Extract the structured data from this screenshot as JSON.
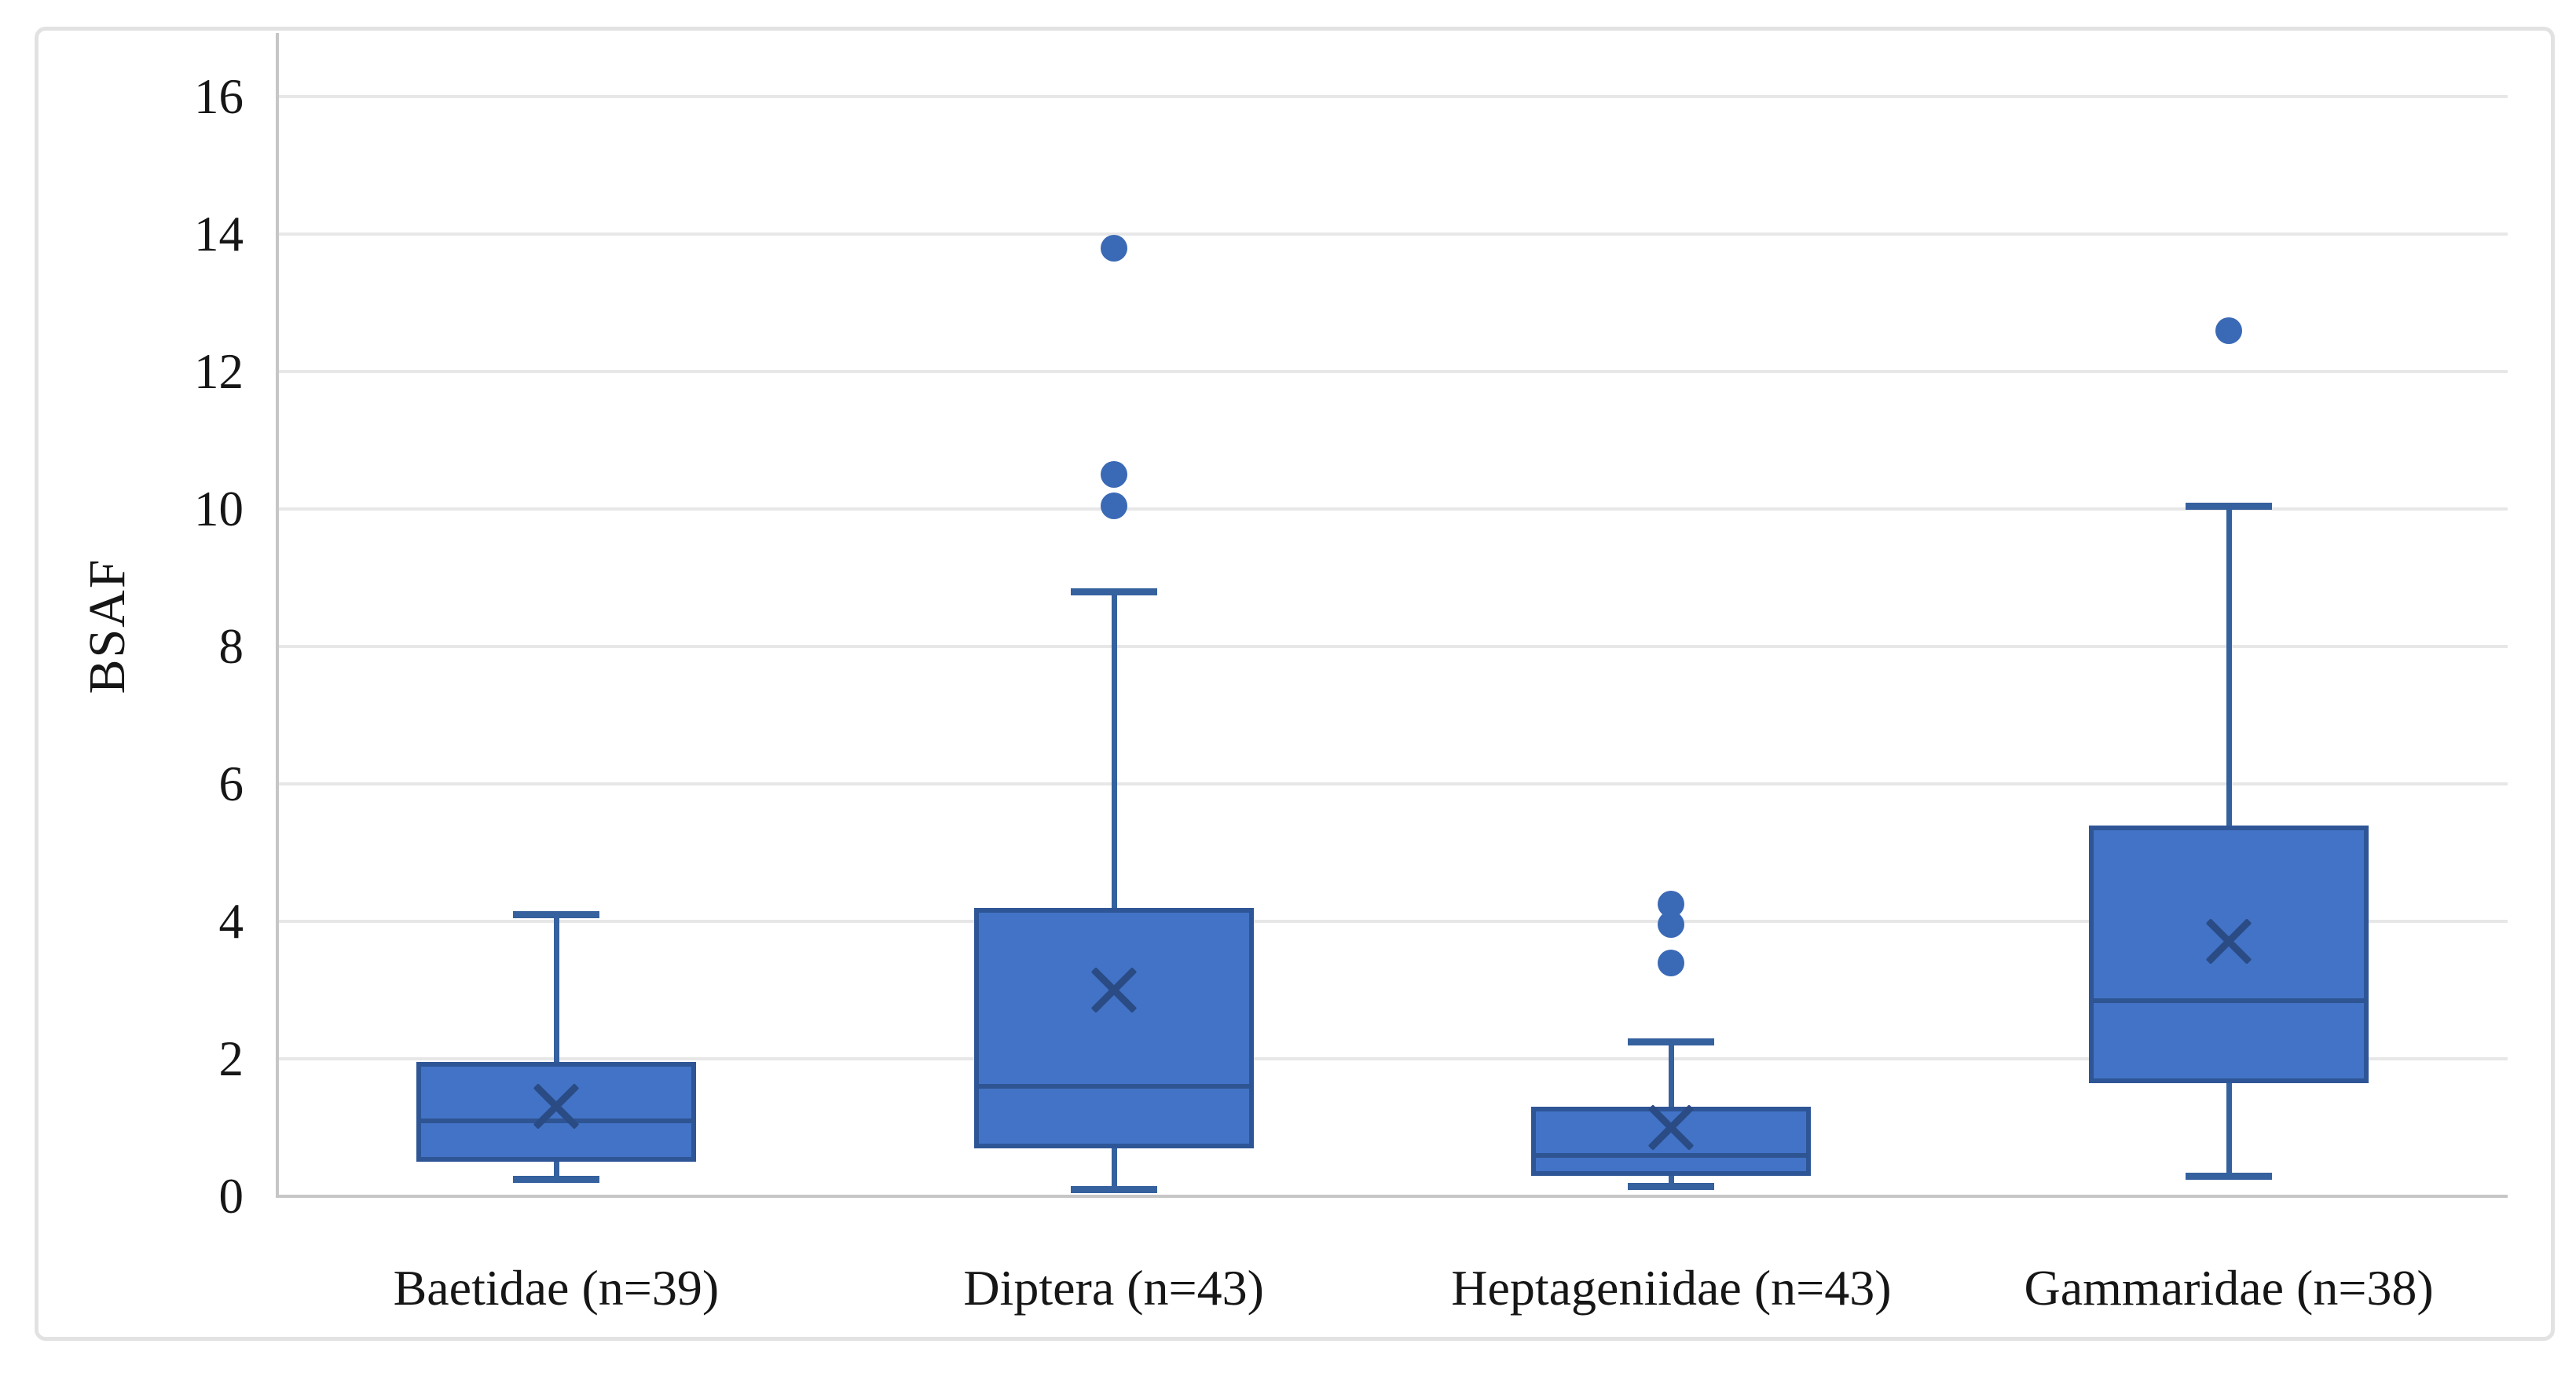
{
  "figure": {
    "background": "#FFFFFF",
    "border_color": "#E2E2E2"
  },
  "chart_data": {
    "type": "box",
    "title": "",
    "xlabel": "",
    "ylabel": "BSAF",
    "ylim": [
      0,
      16
    ],
    "ytick_step": 2,
    "ytick_labels": [
      "0",
      "2",
      "4",
      "6",
      "8",
      "10",
      "12",
      "14",
      "16"
    ],
    "grid": "horizontal",
    "legend": "none",
    "categories": [
      "Baetidae (n=39)",
      "Diptera (n=43)",
      "Heptageniidae (n=43)",
      "Gammaridae (n=38)"
    ],
    "series": [
      {
        "name": "Baetidae (n=39)",
        "whisker_low": 0.25,
        "q1": 0.5,
        "median": 1.1,
        "mean": 1.3,
        "q3": 1.95,
        "whisker_high": 4.1,
        "outliers": []
      },
      {
        "name": "Diptera (n=43)",
        "whisker_low": 0.1,
        "q1": 0.7,
        "median": 1.6,
        "mean": 3.0,
        "q3": 4.2,
        "whisker_high": 8.8,
        "outliers": [
          10.05,
          10.5,
          13.8
        ]
      },
      {
        "name": "Heptageniidae (n=43)",
        "whisker_low": 0.15,
        "q1": 0.3,
        "median": 0.6,
        "mean": 1.0,
        "q3": 1.3,
        "whisker_high": 2.25,
        "outliers": [
          3.4,
          3.95,
          4.25
        ]
      },
      {
        "name": "Gammaridae (n=38)",
        "whisker_low": 0.3,
        "q1": 1.65,
        "median": 2.85,
        "mean": 3.7,
        "q3": 5.4,
        "whisker_high": 10.05,
        "outliers": [
          12.6
        ]
      }
    ],
    "colors": {
      "box_fill": "#4273C6",
      "box_border": "#2E5596",
      "median": "#2F5492",
      "mean_marker": "#2B4B85",
      "whisker": "#35619E",
      "outlier": "#3A69B6",
      "gridline": "#E8E7E7",
      "axis_line": "#C6C6C6",
      "text": "#161616"
    }
  }
}
